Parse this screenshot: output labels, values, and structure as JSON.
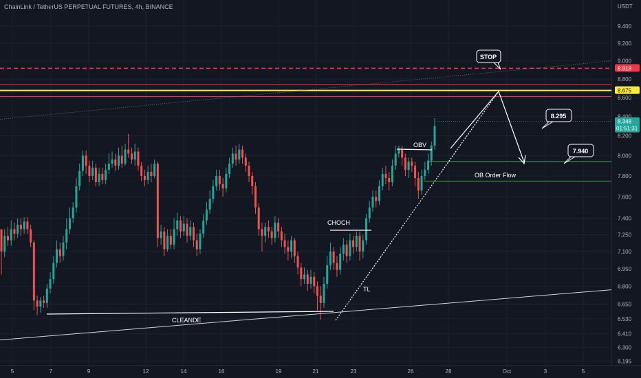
{
  "symbol_title": "ChainLink / TetherUS PERPETUAL FUTURES, 4h, BINANCE",
  "colors": {
    "background": "#131722",
    "up": "#26a69a",
    "down": "#ef5350",
    "grid": "#1e2230",
    "red_line": "#f23645",
    "yellow_line": "#ffeb3b",
    "green_line": "#4caf50",
    "annotation": "#ffffff"
  },
  "chart_data": {
    "type": "candlestick",
    "title": "ChainLink / TetherUS PERPETUAL FUTURES, 4h, BINANCE",
    "price_unit": "USDT",
    "price_scale": "log",
    "ylim": [
      6.195,
      9.7
    ],
    "y_ticks": [
      "9.400",
      "9.200",
      "9.000",
      "8.800",
      "8.600",
      "8.400",
      "8.200",
      "8.000",
      "7.800",
      "7.600",
      "7.400",
      "7.250",
      "7.100",
      "6.950",
      "6.800",
      "6.650",
      "6.530",
      "6.410",
      "6.300",
      "6.195"
    ],
    "x_ticks": [
      "5",
      "7",
      "9",
      "12",
      "14",
      "16",
      "19",
      "21",
      "23",
      "26",
      "28",
      "Oct",
      "3",
      "5"
    ],
    "current_price": "8.348",
    "countdown": "01:51:31",
    "price_tags": [
      "8.918",
      "8.675"
    ],
    "horizontal_levels": [
      {
        "price": 8.918,
        "style": "dashed",
        "color": "red"
      },
      {
        "price": 8.74,
        "style": "solid",
        "color": "red"
      },
      {
        "price": 8.675,
        "style": "solid",
        "color": "yellow"
      },
      {
        "price": 8.61,
        "style": "solid",
        "color": "red"
      }
    ],
    "candles": [
      [
        7.3,
        7.1,
        7.3,
        6.9
      ],
      [
        7.1,
        7.24,
        7.3,
        7.05
      ],
      [
        7.24,
        7.2,
        7.32,
        7.15
      ],
      [
        7.2,
        7.3,
        7.38,
        7.15
      ],
      [
        7.3,
        7.26,
        7.36,
        7.2
      ],
      [
        7.26,
        7.34,
        7.4,
        7.22
      ],
      [
        7.34,
        7.3,
        7.4,
        7.24
      ],
      [
        7.3,
        7.37,
        7.41,
        7.26
      ],
      [
        7.37,
        7.3,
        7.41,
        7.26
      ],
      [
        7.3,
        7.18,
        7.34,
        7.14
      ],
      [
        7.18,
        6.68,
        7.2,
        6.6
      ],
      [
        6.68,
        6.63,
        6.72,
        6.56
      ],
      [
        6.63,
        6.68,
        6.71,
        6.58
      ],
      [
        6.68,
        6.66,
        6.72,
        6.62
      ],
      [
        6.66,
        6.78,
        6.82,
        6.62
      ],
      [
        6.78,
        6.86,
        6.92,
        6.74
      ],
      [
        6.86,
        7.0,
        7.06,
        6.82
      ],
      [
        7.0,
        7.12,
        7.2,
        6.96
      ],
      [
        7.12,
        7.06,
        7.18,
        7.0
      ],
      [
        7.06,
        7.18,
        7.24,
        7.02
      ],
      [
        7.18,
        7.3,
        7.4,
        7.12
      ],
      [
        7.3,
        7.4,
        7.5,
        7.26
      ],
      [
        7.4,
        7.5,
        7.55,
        7.36
      ],
      [
        7.5,
        7.7,
        7.78,
        7.45
      ],
      [
        7.7,
        7.85,
        7.92,
        7.66
      ],
      [
        7.85,
        8.0,
        8.05,
        7.8
      ],
      [
        8.0,
        7.9,
        8.05,
        7.82
      ],
      [
        7.9,
        7.8,
        7.95,
        7.74
      ],
      [
        7.8,
        7.88,
        7.95,
        7.76
      ],
      [
        7.88,
        7.74,
        7.92,
        7.7
      ],
      [
        7.74,
        7.82,
        7.88,
        7.7
      ],
      [
        7.82,
        7.76,
        7.88,
        7.72
      ],
      [
        7.76,
        7.86,
        7.92,
        7.72
      ],
      [
        7.86,
        7.92,
        8.02,
        7.82
      ],
      [
        7.92,
        7.96,
        8.04,
        7.88
      ],
      [
        7.96,
        7.9,
        8.02,
        7.85
      ],
      [
        7.9,
        8.0,
        8.08,
        7.86
      ],
      [
        8.0,
        7.92,
        8.1,
        7.88
      ],
      [
        7.92,
        8.06,
        8.12,
        7.9
      ],
      [
        8.06,
        8.02,
        8.22,
        7.98
      ],
      [
        8.02,
        7.96,
        8.08,
        7.92
      ],
      [
        7.96,
        8.04,
        8.12,
        7.9
      ],
      [
        8.04,
        7.9,
        8.08,
        7.85
      ],
      [
        7.9,
        7.8,
        7.94,
        7.75
      ],
      [
        7.8,
        7.76,
        7.86,
        7.7
      ],
      [
        7.76,
        7.84,
        7.9,
        7.72
      ],
      [
        7.84,
        7.8,
        7.92,
        7.74
      ],
      [
        7.8,
        7.92,
        7.96,
        7.78
      ],
      [
        7.92,
        7.22,
        7.94,
        7.14
      ],
      [
        7.22,
        7.28,
        7.34,
        7.16
      ],
      [
        7.28,
        7.12,
        7.32,
        7.06
      ],
      [
        7.12,
        7.24,
        7.3,
        7.1
      ],
      [
        7.24,
        7.16,
        7.3,
        7.12
      ],
      [
        7.16,
        7.3,
        7.4,
        7.12
      ],
      [
        7.3,
        7.38,
        7.45,
        7.24
      ],
      [
        7.38,
        7.28,
        7.42,
        7.22
      ],
      [
        7.28,
        7.35,
        7.42,
        7.24
      ],
      [
        7.35,
        7.24,
        7.4,
        7.18
      ],
      [
        7.24,
        7.32,
        7.38,
        7.2
      ],
      [
        7.32,
        7.2,
        7.36,
        7.14
      ],
      [
        7.2,
        7.12,
        7.26,
        7.06
      ],
      [
        7.12,
        7.26,
        7.3,
        7.08
      ],
      [
        7.26,
        7.38,
        7.44,
        7.22
      ],
      [
        7.38,
        7.48,
        7.55,
        7.34
      ],
      [
        7.48,
        7.58,
        7.66,
        7.44
      ],
      [
        7.58,
        7.7,
        7.76,
        7.54
      ],
      [
        7.7,
        7.8,
        7.86,
        7.66
      ],
      [
        7.8,
        7.72,
        7.86,
        7.66
      ],
      [
        7.72,
        7.68,
        7.78,
        7.6
      ],
      [
        7.68,
        7.82,
        7.88,
        7.64
      ],
      [
        7.82,
        7.92,
        7.98,
        7.78
      ],
      [
        7.92,
        8.02,
        8.08,
        7.88
      ],
      [
        8.02,
        7.96,
        8.1,
        7.9
      ],
      [
        7.96,
        8.06,
        8.12,
        7.92
      ],
      [
        8.06,
        7.98,
        8.1,
        7.92
      ],
      [
        7.98,
        7.9,
        8.02,
        7.84
      ],
      [
        7.9,
        7.8,
        7.94,
        7.74
      ],
      [
        7.8,
        7.7,
        7.84,
        7.62
      ],
      [
        7.7,
        7.5,
        7.74,
        7.44
      ],
      [
        7.5,
        7.3,
        7.54,
        7.24
      ],
      [
        7.3,
        7.24,
        7.36,
        7.1
      ],
      [
        7.24,
        7.32,
        7.36,
        7.18
      ],
      [
        7.32,
        7.28,
        7.38,
        7.22
      ],
      [
        7.28,
        7.22,
        7.32,
        7.16
      ],
      [
        7.22,
        7.36,
        7.42,
        7.18
      ],
      [
        7.36,
        7.28,
        7.4,
        7.22
      ],
      [
        7.28,
        7.2,
        7.32,
        7.14
      ],
      [
        7.2,
        7.14,
        7.26,
        7.08
      ],
      [
        7.14,
        7.1,
        7.2,
        7.02
      ],
      [
        7.1,
        7.2,
        7.24,
        7.04
      ],
      [
        7.2,
        7.06,
        7.22,
        7.0
      ],
      [
        7.06,
        6.96,
        7.1,
        6.9
      ],
      [
        6.96,
        6.86,
        7.0,
        6.8
      ],
      [
        6.86,
        6.9,
        6.96,
        6.82
      ],
      [
        6.9,
        6.82,
        6.94,
        6.76
      ],
      [
        6.82,
        6.88,
        6.94,
        6.78
      ],
      [
        6.88,
        6.8,
        6.92,
        6.74
      ],
      [
        6.8,
        6.72,
        6.84,
        6.6
      ],
      [
        6.72,
        6.66,
        6.8,
        6.52
      ],
      [
        6.66,
        6.82,
        6.88,
        6.62
      ],
      [
        6.82,
        6.98,
        7.06,
        6.78
      ],
      [
        6.98,
        7.1,
        7.18,
        6.94
      ],
      [
        7.1,
        7.0,
        7.14,
        6.94
      ],
      [
        7.0,
        6.94,
        7.06,
        6.88
      ],
      [
        6.94,
        7.08,
        7.14,
        6.9
      ],
      [
        7.08,
        7.16,
        7.22,
        7.02
      ],
      [
        7.16,
        7.06,
        7.2,
        7.0
      ],
      [
        7.06,
        7.2,
        7.26,
        7.02
      ],
      [
        7.2,
        7.14,
        7.24,
        7.08
      ],
      [
        7.14,
        7.24,
        7.28,
        7.1
      ],
      [
        7.24,
        7.1,
        7.28,
        7.02
      ],
      [
        7.1,
        7.2,
        7.25,
        7.04
      ],
      [
        7.2,
        7.4,
        7.44,
        7.16
      ],
      [
        7.4,
        7.5,
        7.56,
        7.36
      ],
      [
        7.5,
        7.6,
        7.66,
        7.46
      ],
      [
        7.6,
        7.56,
        7.66,
        7.5
      ],
      [
        7.56,
        7.7,
        7.76,
        7.52
      ],
      [
        7.7,
        7.82,
        7.88,
        7.66
      ],
      [
        7.82,
        7.78,
        7.9,
        7.72
      ],
      [
        7.78,
        7.74,
        7.84,
        7.66
      ],
      [
        7.74,
        7.9,
        7.96,
        7.7
      ],
      [
        7.9,
        8.02,
        8.1,
        7.86
      ],
      [
        8.02,
        8.06,
        8.1,
        7.98
      ],
      [
        8.06,
        7.98,
        8.1,
        7.9
      ],
      [
        7.98,
        7.86,
        8.02,
        7.8
      ],
      [
        7.86,
        7.94,
        7.98,
        7.78
      ],
      [
        7.94,
        7.9,
        7.98,
        7.84
      ],
      [
        7.9,
        7.78,
        7.94,
        7.7
      ],
      [
        7.78,
        7.66,
        7.84,
        7.58
      ],
      [
        7.66,
        7.8,
        7.86,
        7.62
      ],
      [
        7.8,
        7.86,
        7.94,
        7.76
      ],
      [
        7.86,
        7.95,
        8.02,
        7.82
      ],
      [
        7.95,
        8.1,
        8.14,
        7.9
      ],
      [
        8.1,
        8.3,
        8.38,
        8.06
      ]
    ],
    "annotations": [
      "STOP",
      "8.295",
      "7.940",
      "OBV",
      "OB Order Flow",
      "CHOCH",
      "TL",
      "CLEANDE"
    ]
  }
}
